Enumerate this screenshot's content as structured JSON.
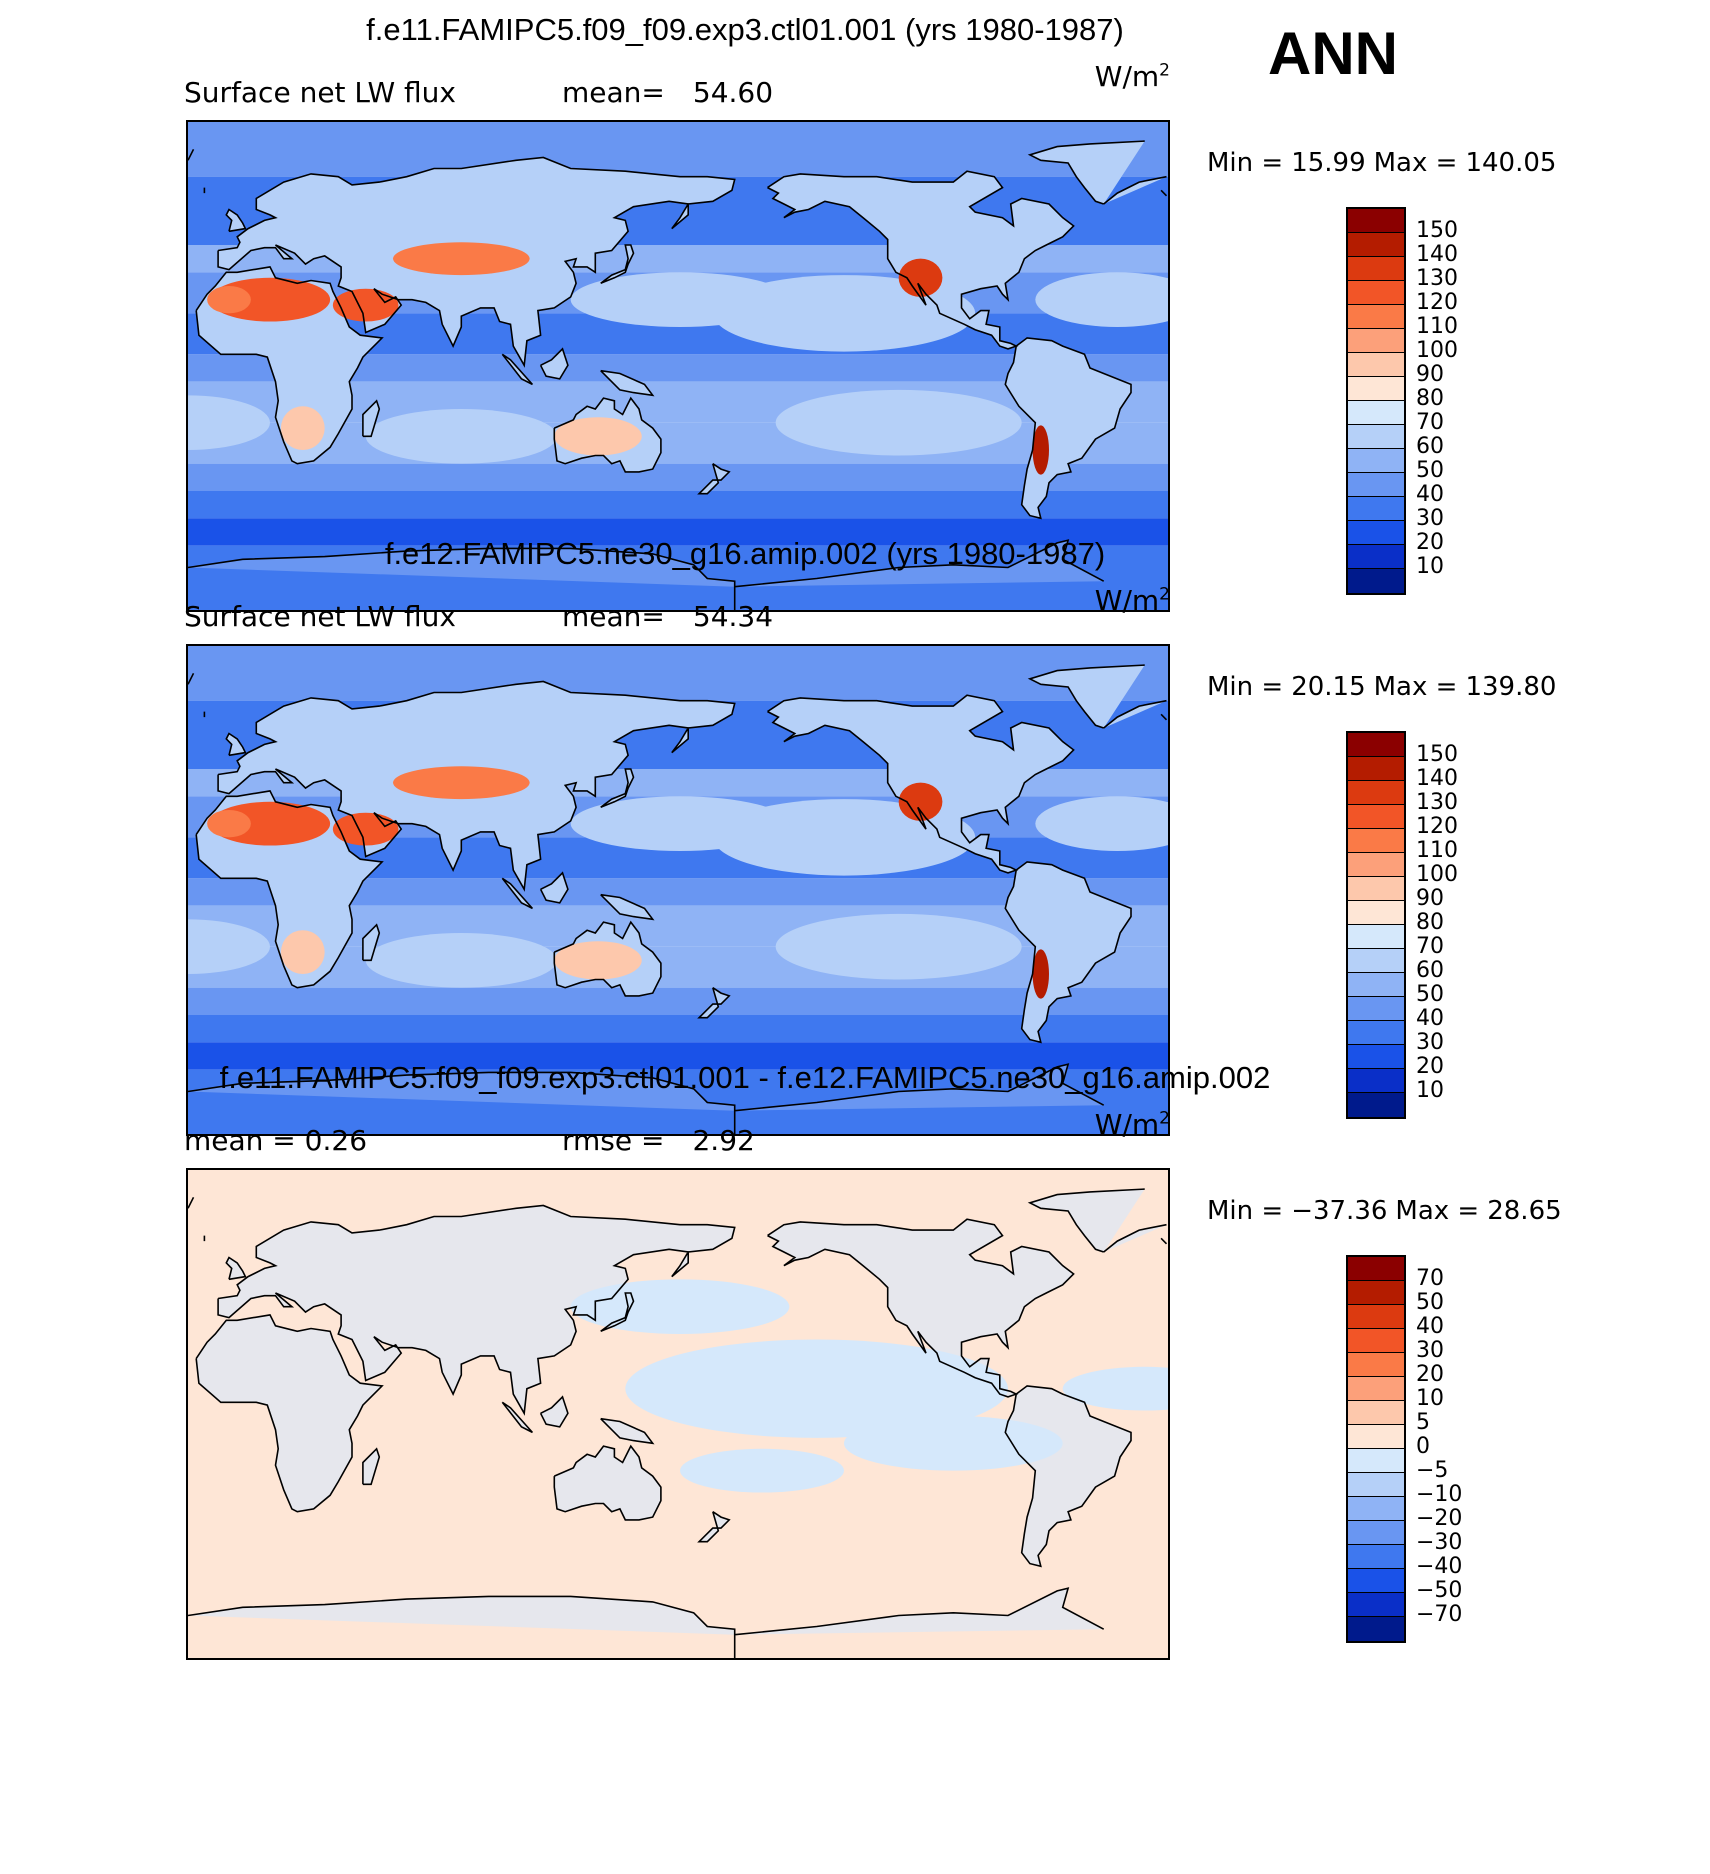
{
  "season": "ANN",
  "panels": [
    {
      "title": "f.e11.FAMIPC5.f09_f09.exp3.ctl01.001 (yrs 1980-1987)",
      "stat_left": "Surface net LW flux",
      "stat_mid_label": "mean=",
      "stat_mid_value": "54.60",
      "units": "W/m",
      "units_sup": "2",
      "min_label": "Min =",
      "min_value": "15.99",
      "max_label": "Max =",
      "max_value": "140.05",
      "colorbar_labels": [
        "150",
        "140",
        "130",
        "120",
        "110",
        "100",
        "90",
        "80",
        "70",
        "60",
        "50",
        "40",
        "30",
        "20",
        "10"
      ],
      "colorbar_colors": [
        "#8b0000",
        "#b41c00",
        "#dc3a10",
        "#f25527",
        "#fa7a47",
        "#fca07a",
        "#fdc8ac",
        "#fee6d6",
        "#d5e8fb",
        "#b5d0f8",
        "#8fb3f5",
        "#6996f2",
        "#3f78ef",
        "#1a52e8",
        "#0a2fc8",
        "#001a8c"
      ],
      "field": "mean"
    },
    {
      "title": "f.e12.FAMIPC5.ne30_g16.amip.002 (yrs 1980-1987)",
      "stat_left": "Surface net LW flux",
      "stat_mid_label": "mean=",
      "stat_mid_value": "54.34",
      "units": "W/m",
      "units_sup": "2",
      "min_label": "Min =",
      "min_value": "20.15",
      "max_label": "Max =",
      "max_value": "139.80",
      "colorbar_labels": [
        "150",
        "140",
        "130",
        "120",
        "110",
        "100",
        "90",
        "80",
        "70",
        "60",
        "50",
        "40",
        "30",
        "20",
        "10"
      ],
      "colorbar_colors": [
        "#8b0000",
        "#b41c00",
        "#dc3a10",
        "#f25527",
        "#fa7a47",
        "#fca07a",
        "#fdc8ac",
        "#fee6d6",
        "#d5e8fb",
        "#b5d0f8",
        "#8fb3f5",
        "#6996f2",
        "#3f78ef",
        "#1a52e8",
        "#0a2fc8",
        "#001a8c"
      ],
      "field": "mean"
    },
    {
      "title": "f.e11.FAMIPC5.f09_f09.exp3.ctl01.001 - f.e12.FAMIPC5.ne30_g16.amip.002",
      "stat_left": "mean =    0.26",
      "stat_mid_label": "rmse =",
      "stat_mid_value": "2.92",
      "units": "W/m",
      "units_sup": "2",
      "min_label": "Min =",
      "min_value": "−37.36",
      "max_label": "Max =",
      "max_value": "28.65",
      "colorbar_labels": [
        "70",
        "50",
        "40",
        "30",
        "20",
        "10",
        "5",
        "0",
        "−5",
        "−10",
        "−20",
        "−30",
        "−40",
        "−50",
        "−70"
      ],
      "colorbar_colors": [
        "#8b0000",
        "#b41c00",
        "#dc3a10",
        "#f25527",
        "#fa7a47",
        "#fca07a",
        "#fdc8ac",
        "#fee6d6",
        "#d5e8fb",
        "#b5d0f8",
        "#8fb3f5",
        "#6996f2",
        "#3f78ef",
        "#1a52e8",
        "#0a2fc8",
        "#001a8c"
      ],
      "field": "diff"
    }
  ]
}
